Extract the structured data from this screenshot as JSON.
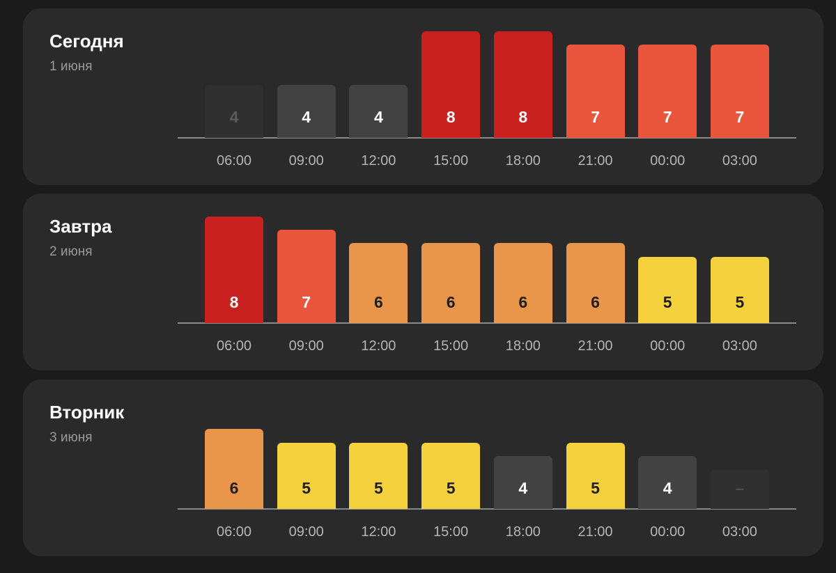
{
  "colors": {
    "page_bg": "#1b1b1b",
    "card_bg": "#2a2a2a",
    "level_colors": {
      "none": "#303030",
      "4": "#424242",
      "5": "#f5d23d",
      "6": "#e9964b",
      "7": "#ea563d",
      "8": "#c92020"
    }
  },
  "chart_data": [
    {
      "type": "bar",
      "title": "Сегодня",
      "subtitle": "1 июня",
      "categories": [
        "06:00",
        "09:00",
        "12:00",
        "15:00",
        "18:00",
        "21:00",
        "00:00",
        "03:00"
      ],
      "values": [
        4,
        4,
        4,
        8,
        8,
        7,
        7,
        7
      ],
      "labels": [
        "4",
        "4",
        "4",
        "8",
        "8",
        "7",
        "7",
        "7"
      ],
      "past": [
        true,
        false,
        false,
        false,
        false,
        false,
        false,
        false
      ]
    },
    {
      "type": "bar",
      "title": "Завтра",
      "subtitle": "2 июня",
      "categories": [
        "06:00",
        "09:00",
        "12:00",
        "15:00",
        "18:00",
        "21:00",
        "00:00",
        "03:00"
      ],
      "values": [
        8,
        7,
        6,
        6,
        6,
        6,
        5,
        5
      ],
      "labels": [
        "8",
        "7",
        "6",
        "6",
        "6",
        "6",
        "5",
        "5"
      ],
      "past": [
        false,
        false,
        false,
        false,
        false,
        false,
        false,
        false
      ]
    },
    {
      "type": "bar",
      "title": "Вторник",
      "subtitle": "3 июня",
      "categories": [
        "06:00",
        "09:00",
        "12:00",
        "15:00",
        "18:00",
        "21:00",
        "00:00",
        "03:00"
      ],
      "values": [
        6,
        5,
        5,
        5,
        4,
        5,
        4,
        null
      ],
      "labels": [
        "6",
        "5",
        "5",
        "5",
        "4",
        "5",
        "4",
        "–"
      ],
      "past": [
        false,
        false,
        false,
        false,
        false,
        false,
        false,
        false
      ]
    }
  ]
}
